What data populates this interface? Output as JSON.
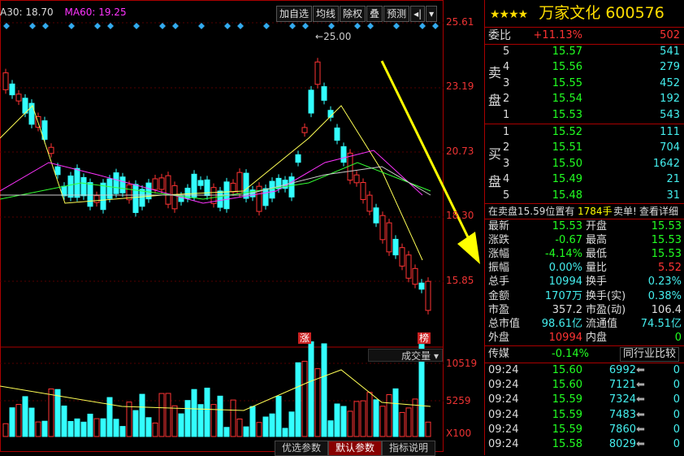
{
  "legend": {
    "ma30": "A30: 18.70",
    "ma60": "MA60: 19.25"
  },
  "toolbar": {
    "b1": "加自选",
    "b2": "均线",
    "b3": "除权",
    "b4": "叠",
    "b5": "预测",
    "b6": "◂|",
    "b7": "▾"
  },
  "price_axis": [
    "25.61",
    "23.19",
    "20.73",
    "18.30",
    "15.85"
  ],
  "volume_axis": [
    "10519",
    "5259",
    "X100"
  ],
  "peak_label": "25.00",
  "marks": {
    "zhang": "涨",
    "bang": "榜"
  },
  "indicator_select": "成交量",
  "bottom_tabs": [
    "优选参数",
    "默认参数",
    "指标说明"
  ],
  "stock": {
    "stars": "★★★★",
    "name": "万家文化",
    "code": "600576"
  },
  "weibi": {
    "label": "委比",
    "pct": "+11.13%",
    "diff": "502"
  },
  "sell_label": [
    "卖",
    "盘"
  ],
  "buy_label": [
    "买",
    "盘"
  ],
  "sell": [
    {
      "lvl": "5",
      "price": "15.57",
      "vol": "541"
    },
    {
      "lvl": "4",
      "price": "15.56",
      "vol": "279"
    },
    {
      "lvl": "3",
      "price": "15.55",
      "vol": "452"
    },
    {
      "lvl": "2",
      "price": "15.54",
      "vol": "192"
    },
    {
      "lvl": "1",
      "price": "15.53",
      "vol": "543"
    }
  ],
  "buy": [
    {
      "lvl": "1",
      "price": "15.52",
      "vol": "111"
    },
    {
      "lvl": "2",
      "price": "15.51",
      "vol": "704"
    },
    {
      "lvl": "3",
      "price": "15.50",
      "vol": "1642"
    },
    {
      "lvl": "4",
      "price": "15.49",
      "vol": "21"
    },
    {
      "lvl": "5",
      "price": "15.48",
      "vol": "31"
    }
  ],
  "queue": {
    "text": "在卖盘15.59位置有",
    "vol": "1784手",
    "label": "卖单!",
    "link": "查看详细"
  },
  "stats": [
    {
      "l1": "最新",
      "v1": "15.53",
      "c1": "green",
      "l2": "开盘",
      "v2": "15.53",
      "c2": "green"
    },
    {
      "l1": "涨跌",
      "v1": "-0.67",
      "c1": "green",
      "l2": "最高",
      "v2": "15.53",
      "c2": "green"
    },
    {
      "l1": "涨幅",
      "v1": "-4.14%",
      "c1": "green",
      "l2": "最低",
      "v2": "15.53",
      "c2": "green"
    },
    {
      "l1": "振幅",
      "v1": "0.00%",
      "c1": "cyan",
      "l2": "量比",
      "v2": "5.52",
      "c2": "red"
    },
    {
      "l1": "总手",
      "v1": "10994",
      "c1": "cyan",
      "l2": "换手",
      "v2": "0.23%",
      "c2": "cyan"
    },
    {
      "l1": "金额",
      "v1": "1707万",
      "c1": "cyan",
      "l2": "换手(实)",
      "v2": "0.38%",
      "c2": "cyan"
    },
    {
      "l1": "市盈",
      "v1": "357.2",
      "c1": "white",
      "l2": "市盈(动)",
      "v2": "106.4",
      "c2": "white"
    },
    {
      "l1": "总市值",
      "v1": "98.61亿",
      "c1": "cyan",
      "l2": "流通值",
      "v2": "74.51亿",
      "c2": "cyan"
    },
    {
      "l1": "外盘",
      "v1": "10994",
      "c1": "red",
      "l2": "内盘",
      "v2": "0",
      "c2": "green"
    }
  ],
  "sector": {
    "name": "传媒",
    "pct": "-0.14%",
    "btn": "同行业比较"
  },
  "ticks": [
    {
      "t": "09:24",
      "p": "15.60",
      "v": "6992",
      "n": "0"
    },
    {
      "t": "09:24",
      "p": "15.60",
      "v": "7121",
      "n": "0"
    },
    {
      "t": "09:24",
      "p": "15.59",
      "v": "7324",
      "n": "0"
    },
    {
      "t": "09:24",
      "p": "15.59",
      "v": "7483",
      "n": "0"
    },
    {
      "t": "09:24",
      "p": "15.59",
      "v": "7860",
      "n": "0"
    },
    {
      "t": "09:24",
      "p": "15.58",
      "v": "8029",
      "n": "0"
    }
  ],
  "colors": {
    "up": "#ff3333",
    "down": "#33ffff",
    "frame": "#aa0000",
    "arrow": "#ffff00"
  }
}
